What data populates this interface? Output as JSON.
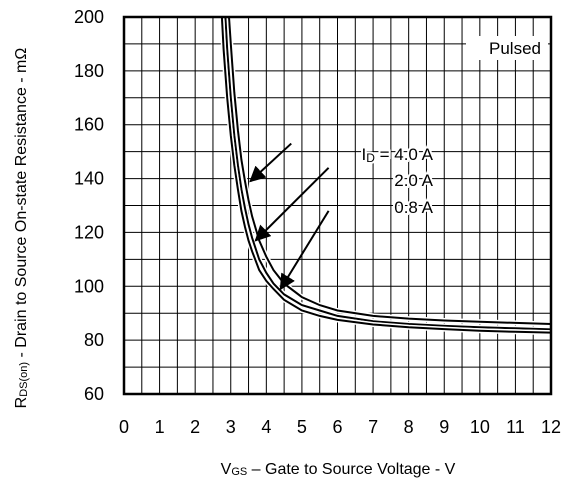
{
  "chart_data": {
    "type": "line",
    "title": "",
    "xlabel": "VGS – Gate to Source Voltage - V",
    "xlabel_parts": [
      "V",
      "GS",
      " – Gate to Source Voltage - V"
    ],
    "ylabel": "RDS(on) - Drain to Source On-state Resistance - mΩ",
    "ylabel_parts": [
      "R",
      "DS(on)",
      " - Drain to Source On-state Resistance - mΩ"
    ],
    "xlim": [
      0,
      12
    ],
    "ylim": [
      60,
      200
    ],
    "x_ticks": [
      "0",
      "1",
      "2",
      "3",
      "4",
      "5",
      "6",
      "7",
      "8",
      "9",
      "10",
      "11",
      "12"
    ],
    "y_ticks": [
      "60",
      "80",
      "100",
      "120",
      "140",
      "160",
      "180",
      "200"
    ],
    "grid": true,
    "x_minor_step": 0.5,
    "y_minor_step": 10,
    "condition_label": "Pulsed",
    "legend_prefix": [
      "I",
      "D",
      " = "
    ],
    "series": [
      {
        "name": "4.0 A",
        "x": [
          2.95,
          3.0,
          3.1,
          3.2,
          3.3,
          3.4,
          3.5,
          3.6,
          3.8,
          4.0,
          4.2,
          4.5,
          5.0,
          5.5,
          6.0,
          7.0,
          8.0,
          9.0,
          10.0,
          11.0,
          12.0
        ],
        "y": [
          200,
          190,
          172,
          158,
          147,
          139,
          132,
          126,
          117,
          111,
          106,
          101,
          96,
          93,
          91,
          89,
          88,
          87.3,
          86.8,
          86.4,
          86
        ]
      },
      {
        "name": "2.0 A",
        "x": [
          2.85,
          2.9,
          3.0,
          3.1,
          3.2,
          3.3,
          3.4,
          3.5,
          3.6,
          3.8,
          4.0,
          4.2,
          4.5,
          5.0,
          5.5,
          6.0,
          7.0,
          8.0,
          9.0,
          10.0,
          11.0,
          12.0
        ],
        "y": [
          200,
          188,
          170,
          156,
          145,
          136,
          129,
          123,
          118,
          110,
          105,
          101,
          97,
          93,
          91,
          89,
          87,
          86,
          85.3,
          84.8,
          84.4,
          84
        ]
      },
      {
        "name": "0.8 A",
        "x": [
          2.75,
          2.8,
          2.9,
          3.0,
          3.1,
          3.2,
          3.3,
          3.4,
          3.5,
          3.6,
          3.8,
          4.0,
          4.2,
          4.5,
          5.0,
          5.5,
          6.0,
          7.0,
          8.0,
          9.0,
          10.0,
          11.0,
          12.0
        ],
        "y": [
          200,
          188,
          170,
          156,
          145,
          136,
          128,
          122,
          117,
          113,
          106,
          102,
          99,
          95,
          91,
          89,
          87.5,
          85.8,
          84.8,
          84.1,
          83.5,
          83.1,
          82.8
        ]
      }
    ],
    "annotations": [
      {
        "text": "4.0 A",
        "arrow_from": [
          4.7,
          153
        ],
        "arrow_to": [
          3.55,
          139
        ]
      },
      {
        "text": "2.0 A",
        "arrow_from": [
          5.75,
          144
        ],
        "arrow_to": [
          3.7,
          117
        ]
      },
      {
        "text": "0.8 A",
        "arrow_from": [
          5.75,
          128
        ],
        "arrow_to": [
          4.4,
          99
        ]
      }
    ]
  }
}
